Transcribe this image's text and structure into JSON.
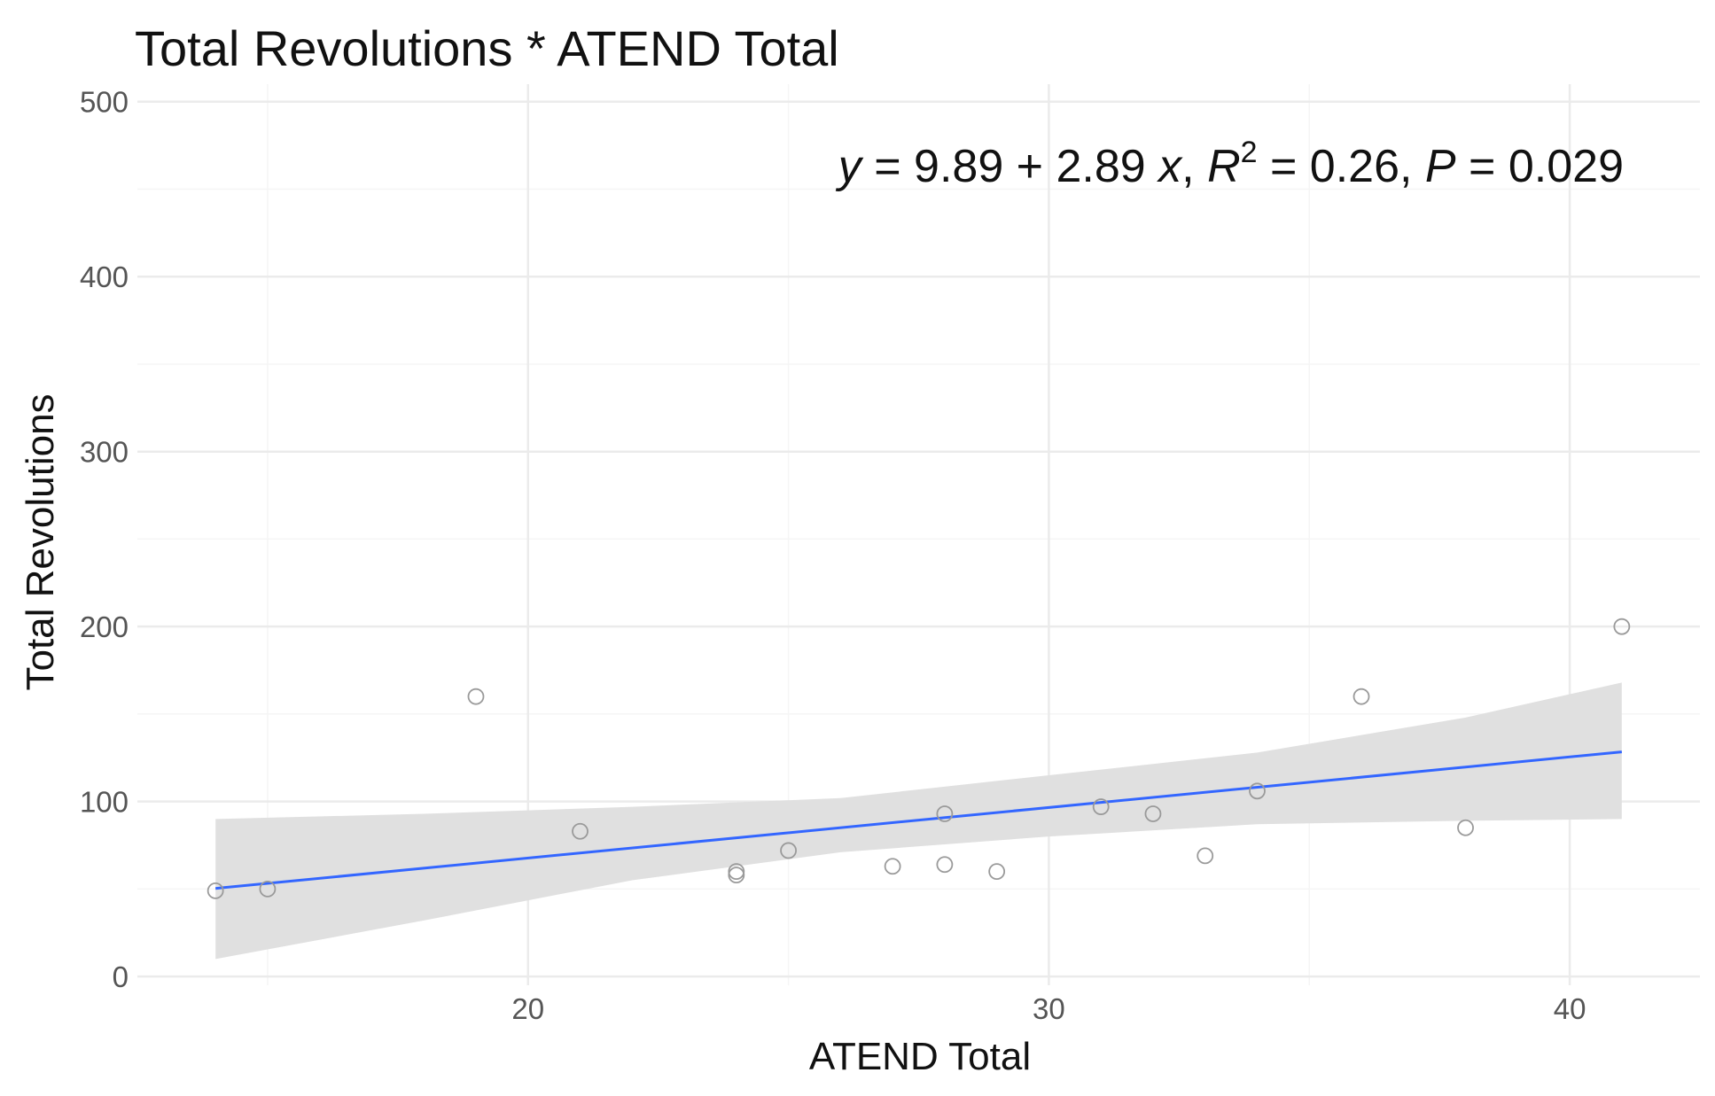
{
  "chart_data": {
    "type": "scatter",
    "title": "Total Revolutions * ATEND Total",
    "xlabel": "ATEND Total",
    "ylabel": "Total Revolutions",
    "xlim": [
      12.5,
      42.5
    ],
    "ylim": [
      -5,
      510
    ],
    "x_ticks": [
      20,
      30,
      40
    ],
    "x_minor_ticks": [
      15,
      25,
      35
    ],
    "y_ticks": [
      0,
      100,
      200,
      300,
      400,
      500
    ],
    "y_minor_ticks": [
      50,
      150,
      250,
      350,
      450
    ],
    "grid": true,
    "points": [
      {
        "x": 14,
        "y": 49
      },
      {
        "x": 15,
        "y": 50
      },
      {
        "x": 19,
        "y": 160
      },
      {
        "x": 21,
        "y": 83
      },
      {
        "x": 24,
        "y": 60
      },
      {
        "x": 24,
        "y": 58
      },
      {
        "x": 25,
        "y": 72
      },
      {
        "x": 27,
        "y": 63
      },
      {
        "x": 28,
        "y": 93
      },
      {
        "x": 28,
        "y": 64
      },
      {
        "x": 29,
        "y": 60
      },
      {
        "x": 31,
        "y": 97
      },
      {
        "x": 32,
        "y": 93
      },
      {
        "x": 33,
        "y": 69
      },
      {
        "x": 34,
        "y": 106
      },
      {
        "x": 36,
        "y": 160
      },
      {
        "x": 38,
        "y": 85
      },
      {
        "x": 41,
        "y": 200
      }
    ],
    "regression": {
      "intercept": 9.89,
      "slope": 2.89,
      "x_range": [
        14,
        41
      ],
      "confidence_band": [
        {
          "x": 14,
          "lower": 10,
          "upper": 90
        },
        {
          "x": 18,
          "lower": 32,
          "upper": 93
        },
        {
          "x": 22,
          "lower": 55,
          "upper": 97
        },
        {
          "x": 26,
          "lower": 71,
          "upper": 102
        },
        {
          "x": 30,
          "lower": 80,
          "upper": 115
        },
        {
          "x": 34,
          "lower": 87,
          "upper": 128
        },
        {
          "x": 38,
          "lower": 89,
          "upper": 148
        },
        {
          "x": 41,
          "lower": 90,
          "upper": 168
        }
      ]
    },
    "annotation": {
      "y_var": "y",
      "eq_middle": " = 9.89 + 2.89 ",
      "x_var": "x",
      "sep1": ", ",
      "r_var": "R",
      "r_exp": "2",
      "r_val": " = 0.26, ",
      "p_var": "P",
      "p_val": " = 0.029"
    },
    "colors": {
      "line": "#3366ff",
      "band": "#e0e0e0",
      "point_stroke": "#9a9a9a",
      "grid_major": "#ebebeb",
      "grid_minor": "#f5f5f5"
    }
  }
}
